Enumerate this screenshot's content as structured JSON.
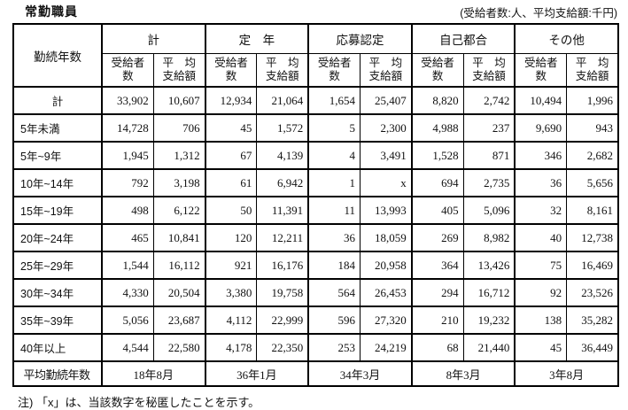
{
  "title": "常勤職員",
  "unit_note": "(受給者数:人、平均支給額:千円)",
  "footnote": "注) 「x」は、当該数字を秘匿したことを示す。",
  "table": {
    "row_header": "勤続年数",
    "groups": [
      {
        "label": "計"
      },
      {
        "label": "定　年"
      },
      {
        "label": "応募認定"
      },
      {
        "label": "自己都合"
      },
      {
        "label": "その他"
      }
    ],
    "subheaders": {
      "recipients": "受給者数",
      "average": "平　均\n支給額"
    },
    "rows": [
      {
        "label": "計",
        "values": [
          "33,902",
          "10,607",
          "12,934",
          "21,064",
          "1,654",
          "25,407",
          "8,820",
          "2,742",
          "10,494",
          "1,996"
        ]
      },
      {
        "label": "5年未満",
        "values": [
          "14,728",
          "706",
          "45",
          "1,572",
          "5",
          "2,300",
          "4,988",
          "237",
          "9,690",
          "943"
        ]
      },
      {
        "label": "5年~9年",
        "values": [
          "1,945",
          "1,312",
          "67",
          "4,139",
          "4",
          "3,491",
          "1,528",
          "871",
          "346",
          "2,682"
        ]
      },
      {
        "label": "10年~14年",
        "values": [
          "792",
          "3,198",
          "61",
          "6,942",
          "1",
          "x",
          "694",
          "2,735",
          "36",
          "5,656"
        ]
      },
      {
        "label": "15年~19年",
        "values": [
          "498",
          "6,122",
          "50",
          "11,391",
          "11",
          "13,993",
          "405",
          "5,096",
          "32",
          "8,161"
        ]
      },
      {
        "label": "20年~24年",
        "values": [
          "465",
          "10,841",
          "120",
          "12,211",
          "36",
          "18,059",
          "269",
          "8,982",
          "40",
          "12,738"
        ]
      },
      {
        "label": "25年~29年",
        "values": [
          "1,544",
          "16,112",
          "921",
          "16,176",
          "184",
          "20,958",
          "364",
          "13,426",
          "75",
          "16,469"
        ]
      },
      {
        "label": "30年~34年",
        "values": [
          "4,330",
          "20,504",
          "3,380",
          "19,758",
          "564",
          "26,453",
          "294",
          "16,712",
          "92",
          "23,526"
        ]
      },
      {
        "label": "35年~39年",
        "values": [
          "5,056",
          "23,687",
          "4,112",
          "22,999",
          "596",
          "27,320",
          "210",
          "19,232",
          "138",
          "35,282"
        ]
      },
      {
        "label": "40年以上",
        "values": [
          "4,544",
          "22,580",
          "4,178",
          "22,350",
          "253",
          "24,219",
          "68",
          "21,440",
          "45",
          "36,449"
        ]
      }
    ],
    "summary_row": {
      "label": "平均勤続年数",
      "values": [
        "18年8月",
        "36年1月",
        "34年3月",
        "8年3月",
        "3年8月"
      ]
    }
  }
}
